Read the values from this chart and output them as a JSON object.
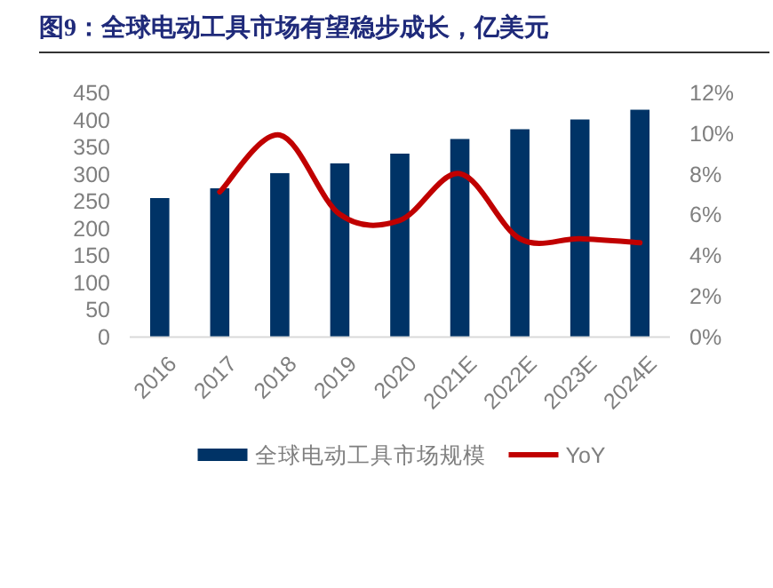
{
  "chart_data": {
    "type": "bar",
    "title": "图9：全球电动工具市场有望稳步成长，亿美元",
    "categories": [
      "2016",
      "2017",
      "2018",
      "2019",
      "2020",
      "2021E",
      "2022E",
      "2023E",
      "2024E"
    ],
    "series": [
      {
        "name": "全球电动工具市场规模",
        "color": "#003366",
        "values": [
          255,
          273,
          301,
          319,
          337,
          364,
          382,
          400,
          418
        ]
      },
      {
        "name": "YoY",
        "type": "line",
        "axis": "y2",
        "color": "#c00000",
        "values": [
          null,
          7.1,
          9.9,
          6.0,
          5.7,
          8.0,
          4.8,
          4.8,
          4.6
        ]
      }
    ],
    "ylim": [
      0,
      450
    ],
    "yticks": [
      0,
      50,
      100,
      150,
      200,
      250,
      300,
      350,
      400,
      450
    ],
    "y2lim": [
      0,
      12
    ],
    "y2ticks": [
      {
        "value": 0,
        "label": "0%"
      },
      {
        "value": 2,
        "label": "2%"
      },
      {
        "value": 4,
        "label": "4%"
      },
      {
        "value": 6,
        "label": "6%"
      },
      {
        "value": 8,
        "label": "8%"
      },
      {
        "value": 10,
        "label": "10%"
      },
      {
        "value": 12,
        "label": "12%"
      }
    ],
    "legend": "bottom",
    "grid": false
  }
}
